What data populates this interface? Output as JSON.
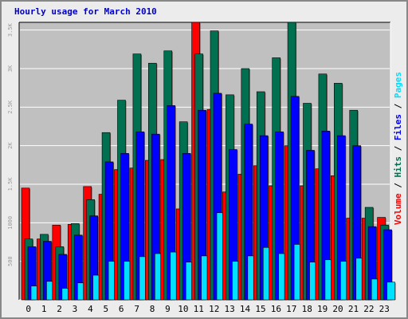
{
  "title": "Hourly usage for March 2010",
  "chart_data": {
    "type": "bar",
    "title": "Hourly usage for March 2010",
    "categories": [
      "0",
      "1",
      "2",
      "3",
      "4",
      "5",
      "6",
      "7",
      "8",
      "9",
      "10",
      "11",
      "12",
      "13",
      "14",
      "15",
      "16",
      "17",
      "18",
      "19",
      "20",
      "21",
      "22",
      "23"
    ],
    "ylim": [
      0,
      3600
    ],
    "yticks": [
      "500",
      "1000",
      "1.5K",
      "2K",
      "2.5K",
      "3K",
      "3.5K"
    ],
    "ytick_values": [
      500,
      1000,
      1500,
      2000,
      2500,
      3000,
      3500
    ],
    "grid": true,
    "legend": [
      {
        "name": "Volume",
        "color": "#ff0000"
      },
      {
        "name": "Hits",
        "color": "#007050"
      },
      {
        "name": "Files",
        "color": "#0000ff"
      },
      {
        "name": "Pages",
        "color": "#00e0ff"
      }
    ],
    "legend_separator": " / ",
    "legend_position": "right, vertical",
    "series": [
      {
        "name": "Volume",
        "color": "#ff0000",
        "values": [
          1450,
          790,
          970,
          980,
          1470,
          1370,
          1690,
          1710,
          1810,
          1820,
          1180,
          3600,
          2470,
          1400,
          1630,
          1740,
          1480,
          2000,
          1480,
          1700,
          1610,
          1060,
          1060,
          1070
        ]
      },
      {
        "name": "Hits",
        "color": "#007050",
        "values": [
          790,
          850,
          690,
          990,
          1300,
          2170,
          2590,
          3190,
          3070,
          3230,
          2310,
          3190,
          3490,
          2660,
          3000,
          2700,
          3140,
          3600,
          2550,
          2930,
          2810,
          2460,
          1200,
          970
        ]
      },
      {
        "name": "Files",
        "color": "#0000ff",
        "values": [
          690,
          760,
          590,
          840,
          1090,
          1790,
          1900,
          2180,
          2150,
          2520,
          1900,
          2460,
          2680,
          1950,
          2280,
          2130,
          2180,
          2640,
          1940,
          2190,
          2130,
          2000,
          950,
          910
        ]
      },
      {
        "name": "Pages",
        "color": "#00e0ff",
        "values": [
          180,
          240,
          150,
          220,
          320,
          500,
          500,
          560,
          600,
          620,
          490,
          570,
          1130,
          500,
          570,
          680,
          600,
          720,
          490,
          520,
          500,
          540,
          270,
          230
        ]
      }
    ]
  }
}
